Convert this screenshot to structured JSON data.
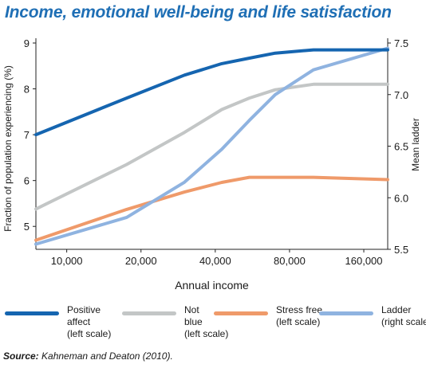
{
  "chart_data": {
    "type": "line",
    "title": "Income, emotional well-being and life satisfaction",
    "xlabel": "Annual income",
    "ylabel_left": "Fraction of population experiencing (%)",
    "ylabel_right": "Mean ladder",
    "x_scale": "log",
    "x": [
      7500,
      17500,
      30000,
      42500,
      55000,
      70000,
      100000,
      200000
    ],
    "x_tick_values": [
      10000,
      20000,
      40000,
      80000,
      160000
    ],
    "x_tick_labels": [
      "10,000",
      "20,000",
      "40,000",
      "80,000",
      "160,000"
    ],
    "xlim": [
      7500,
      200000
    ],
    "ylim_left": [
      4.5,
      9
    ],
    "ylim_right": [
      5.5,
      7.5
    ],
    "y_ticks_left": [
      "5",
      "6",
      "7",
      "8",
      "9"
    ],
    "y_ticks_right": [
      "5.5",
      "6.0",
      "6.5",
      "7.0",
      "7.5"
    ],
    "grid": false,
    "legend_placement": "bottom",
    "series": [
      {
        "name": "Positive affect",
        "legend_lines": [
          "Positive",
          "affect",
          "(left scale)"
        ],
        "axis": "left",
        "color": "#1565b0",
        "values": [
          7.0,
          7.8,
          8.3,
          8.55,
          8.67,
          8.78,
          8.85,
          8.85
        ]
      },
      {
        "name": "Not blue",
        "legend_lines": [
          "Not",
          "blue",
          "(left scale)"
        ],
        "axis": "left",
        "color": "#c3c6c6",
        "values": [
          5.38,
          6.35,
          7.05,
          7.55,
          7.8,
          7.98,
          8.1,
          8.1
        ]
      },
      {
        "name": "Stress free",
        "legend_lines": [
          "Stress free",
          "(left scale)"
        ],
        "axis": "left",
        "color": "#ef9a6a",
        "values": [
          4.7,
          5.37,
          5.75,
          5.96,
          6.07,
          6.07,
          6.07,
          6.02
        ]
      },
      {
        "name": "Ladder",
        "legend_lines": [
          "Ladder",
          "(right scale)"
        ],
        "axis": "right",
        "color": "#8fb3e0",
        "values": [
          5.55,
          5.81,
          6.15,
          6.47,
          6.75,
          7.0,
          7.24,
          7.45
        ]
      }
    ]
  },
  "source": {
    "label": "Source:",
    "text": " Kahneman and Deaton (2010)."
  }
}
